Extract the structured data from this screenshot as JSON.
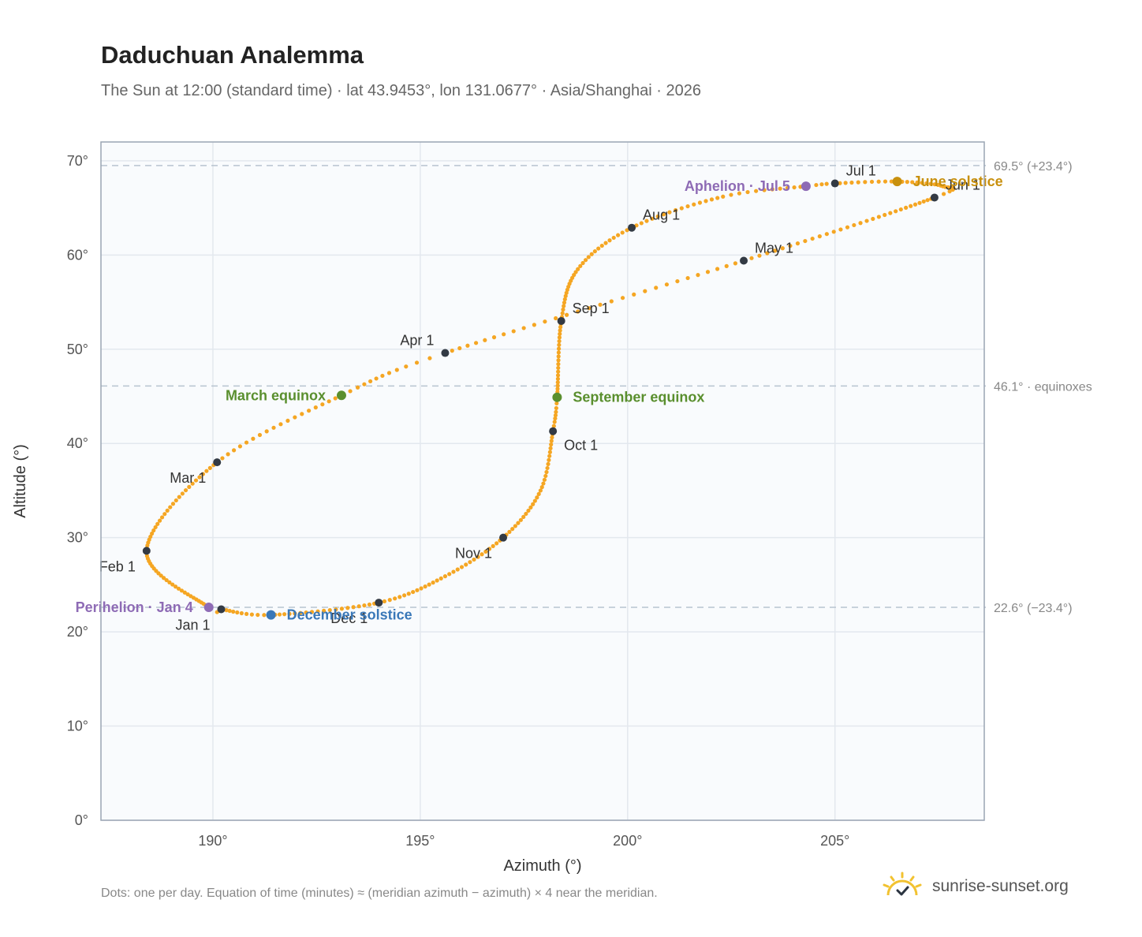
{
  "title": "Daduchuan Analemma",
  "subtitle": "The Sun at 12:00 (standard time) · lat 43.9453°, lon 131.0677° · Asia/Shanghai · 2026",
  "footnote": "Dots: one per day. Equation of time (minutes) ≈ (meridian azimuth − azimuth) × 4 near the meridian.",
  "brand": "sunrise-sunset.org",
  "colors": {
    "path": "#f5a623",
    "month": "#333a44",
    "equinox": "#5a8f2e",
    "june": "#c8900e",
    "december": "#3a78b8",
    "apsis": "#8e6bb5",
    "grid": "#e3e8ee",
    "frame": "#9aa5b3",
    "plotbg": "#f9fbfd",
    "refline": "#b8c4d0"
  },
  "chart_data": {
    "type": "scatter",
    "title": "Daduchuan Analemma",
    "xlabel": "Azimuth (°)",
    "ylabel": "Altitude (°)",
    "xlim": [
      187.3,
      208.6
    ],
    "ylim": [
      0,
      72
    ],
    "xticks": [
      190,
      195,
      200,
      205
    ],
    "yticks": [
      0,
      10,
      20,
      30,
      40,
      50,
      60,
      70
    ],
    "tick_suffix": "°",
    "grid": true,
    "ref_lines": [
      {
        "y": 69.5,
        "label": "69.5° (+23.4°)"
      },
      {
        "y": 46.1,
        "label": "46.1° · equinoxes"
      },
      {
        "y": 22.6,
        "label": "22.6° (−23.4°)"
      }
    ],
    "anchors": [
      {
        "doy": 1,
        "x": 190.2,
        "y": 22.4
      },
      {
        "doy": 4,
        "x": 189.9,
        "y": 22.6
      },
      {
        "doy": 32,
        "x": 188.4,
        "y": 28.6
      },
      {
        "doy": 60,
        "x": 190.1,
        "y": 38.0
      },
      {
        "doy": 79,
        "x": 193.1,
        "y": 45.1
      },
      {
        "doy": 91,
        "x": 195.6,
        "y": 49.6
      },
      {
        "doy": 121,
        "x": 202.8,
        "y": 59.4
      },
      {
        "doy": 152,
        "x": 207.4,
        "y": 66.1
      },
      {
        "doy": 161,
        "x": 207.6,
        "y": 67.3
      },
      {
        "doy": 172,
        "x": 206.5,
        "y": 67.8
      },
      {
        "doy": 182,
        "x": 205.0,
        "y": 67.6
      },
      {
        "doy": 186,
        "x": 204.3,
        "y": 67.3
      },
      {
        "doy": 197,
        "x": 202.3,
        "y": 66.2
      },
      {
        "doy": 213,
        "x": 200.1,
        "y": 62.9
      },
      {
        "doy": 228,
        "x": 198.8,
        "y": 58.5
      },
      {
        "doy": 244,
        "x": 198.4,
        "y": 53.0
      },
      {
        "doy": 266,
        "x": 198.3,
        "y": 44.9
      },
      {
        "doy": 274,
        "x": 198.2,
        "y": 41.3
      },
      {
        "doy": 290,
        "x": 197.9,
        "y": 35.0
      },
      {
        "doy": 305,
        "x": 197.0,
        "y": 30.0
      },
      {
        "doy": 320,
        "x": 195.6,
        "y": 25.9
      },
      {
        "doy": 335,
        "x": 194.0,
        "y": 23.1
      },
      {
        "doy": 355,
        "x": 191.4,
        "y": 21.8
      },
      {
        "doy": 366,
        "x": 190.2,
        "y": 22.4
      }
    ],
    "month_markers": [
      {
        "label": "Jan 1",
        "x": 190.2,
        "y": 22.4,
        "pos": "below-left"
      },
      {
        "label": "Feb 1",
        "x": 188.4,
        "y": 28.6,
        "pos": "below-left"
      },
      {
        "label": "Mar 1",
        "x": 190.1,
        "y": 38.0,
        "pos": "below-left"
      },
      {
        "label": "Apr 1",
        "x": 195.6,
        "y": 49.6,
        "pos": "above-left"
      },
      {
        "label": "May 1",
        "x": 202.8,
        "y": 59.4,
        "pos": "above-right"
      },
      {
        "label": "Jun 1",
        "x": 207.4,
        "y": 66.1,
        "pos": "above-right"
      },
      {
        "label": "Jul 1",
        "x": 205.0,
        "y": 67.6,
        "pos": "above-right"
      },
      {
        "label": "Aug 1",
        "x": 200.1,
        "y": 62.9,
        "pos": "above-right"
      },
      {
        "label": "Sep 1",
        "x": 198.4,
        "y": 53.0,
        "pos": "above-right"
      },
      {
        "label": "Oct 1",
        "x": 198.2,
        "y": 41.3,
        "pos": "below-right"
      },
      {
        "label": "Nov 1",
        "x": 197.0,
        "y": 30.0,
        "pos": "below-left"
      },
      {
        "label": "Dec 1",
        "x": 194.0,
        "y": 23.1,
        "pos": "below-left"
      }
    ],
    "events": [
      {
        "label": "March equinox",
        "x": 193.1,
        "y": 45.1,
        "color": "#5a8f2e",
        "pos": "left"
      },
      {
        "label": "September equinox",
        "x": 198.3,
        "y": 44.9,
        "color": "#5a8f2e",
        "pos": "right"
      },
      {
        "label": "June solstice",
        "x": 206.5,
        "y": 67.8,
        "color": "#c8900e",
        "pos": "right"
      },
      {
        "label": "December solstice",
        "x": 191.4,
        "y": 21.8,
        "color": "#3a78b8",
        "pos": "right"
      },
      {
        "label": "Perihelion · Jan 4",
        "x": 189.9,
        "y": 22.6,
        "color": "#8e6bb5",
        "pos": "left"
      },
      {
        "label": "Aphelion · Jul 5",
        "x": 204.3,
        "y": 67.3,
        "color": "#8e6bb5",
        "pos": "left"
      }
    ]
  }
}
